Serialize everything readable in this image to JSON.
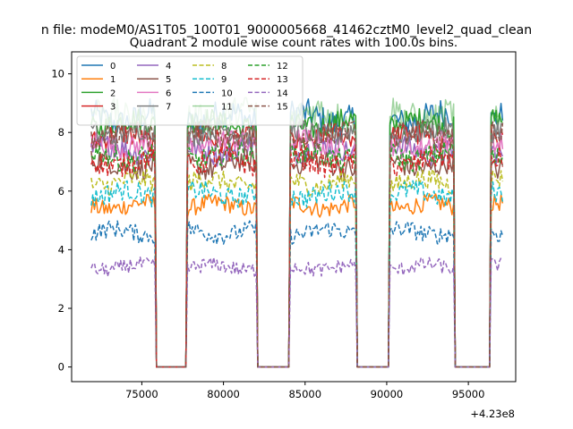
{
  "chart_data": {
    "type": "line",
    "suptitle": "n file: modeM0/AS1T05_100T01_9000005668_41462cztM0_level2_quad_clean",
    "title": "Quadrant 2 module wise count rates with 100.0s bins.",
    "xlabel": "",
    "ylabel": "",
    "x_offset_label": "+4.23e8",
    "xlim": [
      70700,
      97900
    ],
    "ylim": [
      -0.5,
      10.75
    ],
    "x_ticks": [
      75000,
      80000,
      85000,
      90000,
      95000
    ],
    "x_tick_labels": [
      "75000",
      "80000",
      "85000",
      "90000",
      "95000"
    ],
    "y_ticks": [
      0,
      2,
      4,
      6,
      8,
      10
    ],
    "y_tick_labels": [
      "0",
      "2",
      "4",
      "6",
      "8",
      "10"
    ],
    "x_range": [
      71900,
      97100
    ],
    "on_segments": [
      [
        71900,
        75800
      ],
      [
        77800,
        82000
      ],
      [
        84100,
        88100
      ],
      [
        90200,
        94100
      ],
      [
        96400,
        97100
      ]
    ],
    "legend": {
      "placement": "top-left",
      "ncol": 4
    },
    "series": [
      {
        "name": "0",
        "level": 8.5,
        "noise": 0.5,
        "color": "#1f77b4",
        "dash": "solid"
      },
      {
        "name": "1",
        "level": 5.5,
        "noise": 0.3,
        "color": "#ff7f0e",
        "dash": "solid"
      },
      {
        "name": "2",
        "level": 8.3,
        "noise": 0.4,
        "color": "#2ca02c",
        "dash": "solid"
      },
      {
        "name": "3",
        "level": 7.8,
        "noise": 0.4,
        "color": "#d62728",
        "dash": "solid"
      },
      {
        "name": "4",
        "level": 7.4,
        "noise": 0.4,
        "color": "#9467bd",
        "dash": "solid"
      },
      {
        "name": "5",
        "level": 6.9,
        "noise": 0.4,
        "color": "#8c564b",
        "dash": "solid"
      },
      {
        "name": "6",
        "level": 7.6,
        "noise": 0.4,
        "color": "#e377c2",
        "dash": "solid"
      },
      {
        "name": "7",
        "level": 8.0,
        "noise": 0.4,
        "color": "#7f7f7f",
        "dash": "solid"
      },
      {
        "name": "8",
        "level": 6.3,
        "noise": 0.35,
        "color": "#bcbd22",
        "dash": "dashed"
      },
      {
        "name": "9",
        "level": 5.9,
        "noise": 0.35,
        "color": "#17becf",
        "dash": "dashed"
      },
      {
        "name": "10",
        "level": 4.6,
        "noise": 0.3,
        "color": "#1f77b4",
        "dash": "dashed"
      },
      {
        "name": "11",
        "level": 8.6,
        "noise": 0.5,
        "color": "#2ca02c",
        "dash": "solid",
        "alpha": 0.45
      },
      {
        "name": "12",
        "level": 7.2,
        "noise": 0.4,
        "color": "#2ca02c",
        "dash": "dashed"
      },
      {
        "name": "13",
        "level": 7.0,
        "noise": 0.4,
        "color": "#d62728",
        "dash": "dashed"
      },
      {
        "name": "14",
        "level": 3.4,
        "noise": 0.25,
        "color": "#9467bd",
        "dash": "dashed"
      },
      {
        "name": "15",
        "level": 7.9,
        "noise": 0.4,
        "color": "#8c564b",
        "dash": "dashed"
      }
    ]
  }
}
